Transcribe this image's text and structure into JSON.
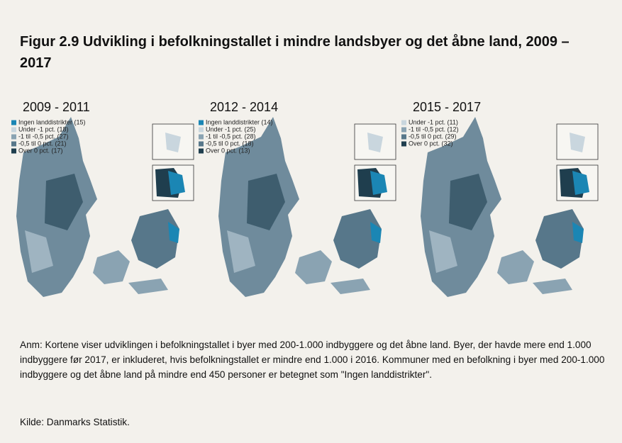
{
  "header": {
    "title": "Figur 2.9 Udvikling i befolkningstallet i mindre landsbyer og det åbne land, 2009 – 2017"
  },
  "maps": [
    {
      "title": "2009 - 2011",
      "legend": [
        {
          "label": "Ingen landdistrikter (15)",
          "color": "#1b86b4"
        },
        {
          "label": "Under -1 pct. (18)",
          "color": "#c9d6de"
        },
        {
          "label": "-1 til -0,5 pct. (27)",
          "color": "#8aa3b2"
        },
        {
          "label": "-0,5 til 0 pct. (21)",
          "color": "#57778a"
        },
        {
          "label": "Over 0 pct. (17)",
          "color": "#1f3e4e"
        }
      ]
    },
    {
      "title": "2012 - 2014",
      "legend": [
        {
          "label": "Ingen landdistrikter (14)",
          "color": "#1b86b4"
        },
        {
          "label": "Under -1 pct. (25)",
          "color": "#c9d6de"
        },
        {
          "label": "-1 til -0,5 pct. (28)",
          "color": "#8aa3b2"
        },
        {
          "label": "-0,5 til 0 pct. (18)",
          "color": "#57778a"
        },
        {
          "label": "Over 0 pct. (13)",
          "color": "#1f3e4e"
        }
      ]
    },
    {
      "title": "2015 - 2017",
      "legend": [
        {
          "label": "Under -1 pct. (11)",
          "color": "#c9d6de"
        },
        {
          "label": "-1 til -0,5 pct. (12)",
          "color": "#8aa3b2"
        },
        {
          "label": "-0,5 til 0 pct. (29)",
          "color": "#57778a"
        },
        {
          "label": "Over 0 pct. (32)",
          "color": "#1f3e4e"
        }
      ]
    }
  ],
  "note": "Anm: Kortene viser udviklingen i befolkningstallet i byer med 200-1.000 indbyggere og det åbne land. Byer, der havde mere end 1.000 indbyggere før 2017, er inkluderet, hvis befolkningstallet er mindre end 1.000 i 2016. Kommuner med en befolkning i byer med 200-1.000 indbyggere og det åbne land på mindre end 450 personer er betegnet som \"Ingen landdistrikter\".",
  "source": "Kilde: Danmarks Statistik."
}
